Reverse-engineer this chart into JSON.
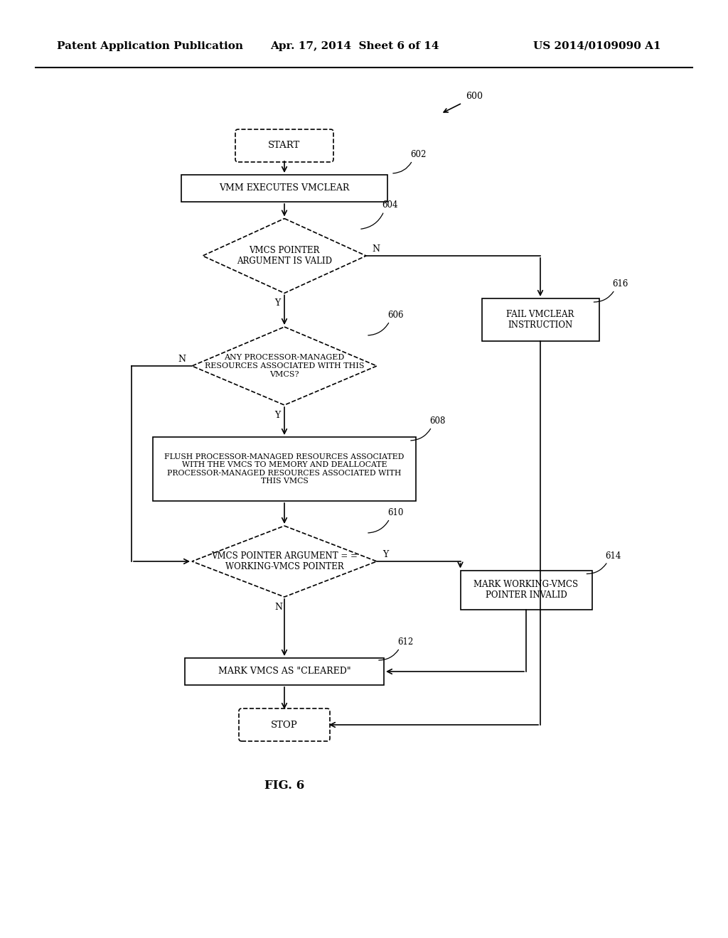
{
  "header_left": "Patent Application Publication",
  "header_mid": "Apr. 17, 2014  Sheet 6 of 14",
  "header_right": "US 2014/0109090 A1",
  "fig_label": "FIG. 6",
  "diagram_ref": "600",
  "background": "#ffffff",
  "line_color": "#000000",
  "text_color": "#000000",
  "font_size_header": 11,
  "font_size_node": 8.5,
  "ref_font_size": 8.5
}
